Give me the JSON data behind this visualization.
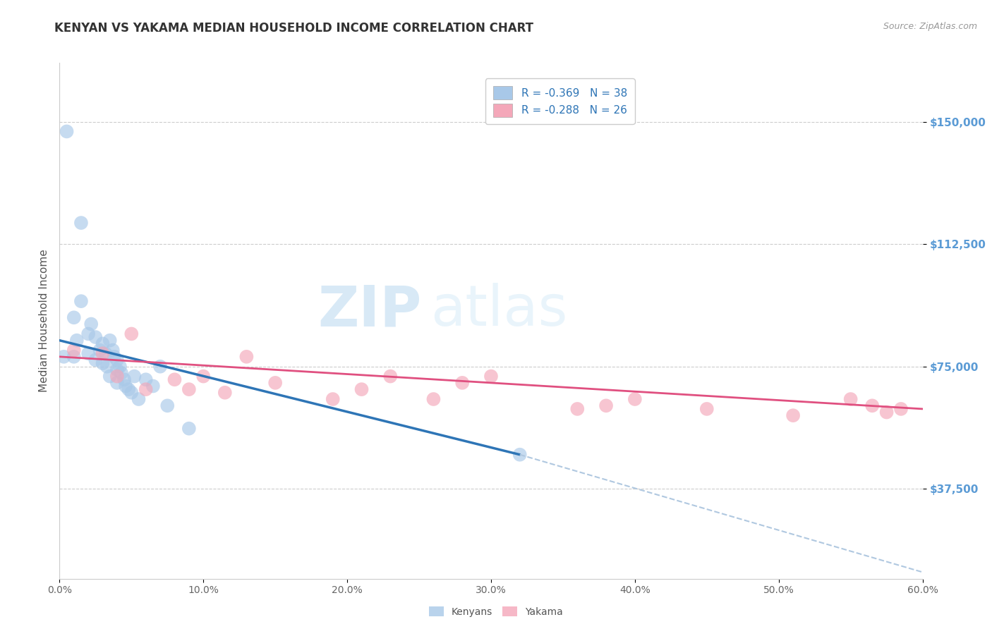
{
  "title": "KENYAN VS YAKAMA MEDIAN HOUSEHOLD INCOME CORRELATION CHART",
  "source": "Source: ZipAtlas.com",
  "ylabel": "Median Household Income",
  "xmin": 0.0,
  "xmax": 0.6,
  "ymin": 10000,
  "ymax": 168000,
  "yticks": [
    37500,
    75000,
    112500,
    150000
  ],
  "ytick_labels": [
    "$37,500",
    "$75,000",
    "$112,500",
    "$150,000"
  ],
  "gridline_y": [
    37500,
    75000,
    112500,
    150000
  ],
  "title_color": "#333333",
  "title_fontsize": 12,
  "source_fontsize": 9,
  "ytick_color": "#5b9bd5",
  "xtick_color": "#666666",
  "ylabel_color": "#555555",
  "legend_text_color": "#2e75b6",
  "kenyan_color": "#a8c8e8",
  "yakama_color": "#f4a7b9",
  "kenyan_line_color": "#2e75b6",
  "yakama_line_color": "#e05080",
  "dashed_line_color": "#b0c8e0",
  "kenyan_R": -0.369,
  "kenyan_N": 38,
  "yakama_R": -0.288,
  "yakama_N": 26,
  "kenyan_scatter_x": [
    0.005,
    0.01,
    0.01,
    0.012,
    0.015,
    0.015,
    0.02,
    0.02,
    0.022,
    0.025,
    0.025,
    0.028,
    0.03,
    0.03,
    0.032,
    0.033,
    0.035,
    0.035,
    0.037,
    0.038,
    0.04,
    0.04,
    0.04,
    0.042,
    0.043,
    0.045,
    0.046,
    0.048,
    0.05,
    0.052,
    0.055,
    0.06,
    0.065,
    0.07,
    0.075,
    0.09,
    0.32,
    0.003
  ],
  "kenyan_scatter_y": [
    147000,
    90000,
    78000,
    83000,
    119000,
    95000,
    85000,
    79000,
    88000,
    84000,
    77000,
    80000,
    82000,
    76000,
    79000,
    75000,
    83000,
    72000,
    80000,
    78000,
    77000,
    74000,
    70000,
    75000,
    73000,
    71000,
    69000,
    68000,
    67000,
    72000,
    65000,
    71000,
    69000,
    75000,
    63000,
    56000,
    48000,
    78000
  ],
  "yakama_scatter_x": [
    0.01,
    0.03,
    0.04,
    0.05,
    0.06,
    0.08,
    0.09,
    0.1,
    0.115,
    0.13,
    0.15,
    0.19,
    0.21,
    0.23,
    0.26,
    0.28,
    0.3,
    0.36,
    0.38,
    0.4,
    0.45,
    0.51,
    0.55,
    0.565,
    0.575,
    0.585
  ],
  "yakama_scatter_y": [
    80000,
    79000,
    72000,
    85000,
    68000,
    71000,
    68000,
    72000,
    67000,
    78000,
    70000,
    65000,
    68000,
    72000,
    65000,
    70000,
    72000,
    62000,
    63000,
    65000,
    62000,
    60000,
    65000,
    63000,
    61000,
    62000
  ],
  "kenyan_trend_x": [
    0.0,
    0.32
  ],
  "kenyan_trend_y": [
    83000,
    48000
  ],
  "yakama_trend_x": [
    0.0,
    0.6
  ],
  "yakama_trend_y": [
    78000,
    62000
  ],
  "dashed_trend_x": [
    0.32,
    0.6
  ],
  "dashed_trend_y": [
    48000,
    12000
  ],
  "background_color": "#ffffff",
  "plot_bg": "#ffffff",
  "watermark_zip": "ZIP",
  "watermark_atlas": "atlas",
  "xtick_positions": [
    0.0,
    0.1,
    0.2,
    0.3,
    0.4,
    0.5,
    0.6
  ],
  "xtick_labels": [
    "0.0%",
    "10.0%",
    "20.0%",
    "30.0%",
    "40.0%",
    "50.0%",
    "60.0%"
  ]
}
